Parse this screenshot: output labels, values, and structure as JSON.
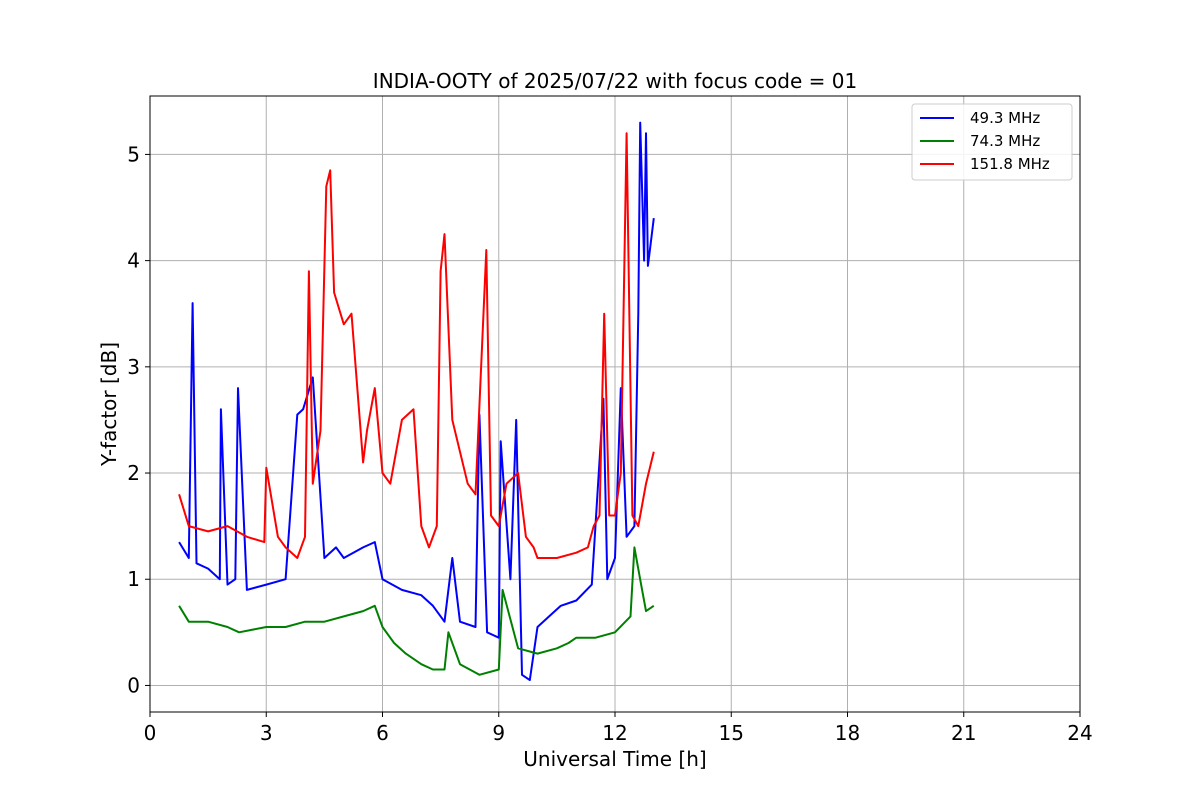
{
  "chart_data": {
    "type": "line",
    "title": "INDIA-OOTY of 2025/07/22 with focus code = 01",
    "xlabel": "Universal Time [h]",
    "ylabel": "Y-factor [dB]",
    "xlim": [
      0,
      24
    ],
    "ylim": [
      -0.25,
      5.55
    ],
    "xticks": [
      0,
      3,
      6,
      9,
      12,
      15,
      18,
      21,
      24
    ],
    "yticks": [
      0,
      1,
      2,
      3,
      4,
      5
    ],
    "grid": true,
    "legend_position": "top-right",
    "series": [
      {
        "name": "  49.3 MHz",
        "color": "#0000ff",
        "x": [
          0.75,
          1.0,
          1.1,
          1.2,
          1.5,
          1.8,
          1.83,
          2.0,
          2.2,
          2.27,
          2.5,
          3.0,
          3.5,
          3.8,
          3.95,
          4.2,
          4.5,
          4.8,
          5.0,
          5.5,
          5.8,
          6.0,
          6.5,
          7.0,
          7.3,
          7.6,
          7.8,
          8.0,
          8.4,
          8.5,
          8.7,
          9.0,
          9.05,
          9.3,
          9.45,
          9.6,
          9.8,
          10.0,
          10.3,
          10.6,
          11.0,
          11.4,
          11.7,
          11.8,
          12.0,
          12.15,
          12.3,
          12.5,
          12.6,
          12.65,
          12.75,
          12.8,
          12.85,
          12.9,
          13.0
        ],
        "y": [
          1.35,
          1.2,
          3.6,
          1.15,
          1.1,
          1.0,
          2.6,
          0.95,
          1.0,
          2.8,
          0.9,
          0.95,
          1.0,
          2.55,
          2.6,
          2.9,
          1.2,
          1.3,
          1.2,
          1.3,
          1.35,
          1.0,
          0.9,
          0.85,
          0.75,
          0.6,
          1.2,
          0.6,
          0.55,
          2.55,
          0.5,
          0.45,
          2.3,
          1.0,
          2.5,
          0.1,
          0.05,
          0.55,
          0.65,
          0.75,
          0.8,
          0.95,
          2.7,
          1.0,
          1.2,
          2.8,
          1.4,
          1.5,
          3.5,
          5.3,
          4.0,
          5.2,
          3.95,
          4.1,
          4.4
        ]
      },
      {
        "name": "  74.3 MHz",
        "color": "#008000",
        "x": [
          0.75,
          1.0,
          1.5,
          2.0,
          2.3,
          3.0,
          3.5,
          4.0,
          4.5,
          5.0,
          5.5,
          5.8,
          6.0,
          6.3,
          6.6,
          7.0,
          7.3,
          7.6,
          7.7,
          8.0,
          8.5,
          9.0,
          9.1,
          9.5,
          10.0,
          10.5,
          10.8,
          11.0,
          11.5,
          12.0,
          12.4,
          12.5,
          12.7,
          12.8,
          13.0
        ],
        "y": [
          0.75,
          0.6,
          0.6,
          0.55,
          0.5,
          0.55,
          0.55,
          0.6,
          0.6,
          0.65,
          0.7,
          0.75,
          0.55,
          0.4,
          0.3,
          0.2,
          0.15,
          0.15,
          0.5,
          0.2,
          0.1,
          0.15,
          0.9,
          0.35,
          0.3,
          0.35,
          0.4,
          0.45,
          0.45,
          0.5,
          0.65,
          1.3,
          0.9,
          0.7,
          0.75
        ]
      },
      {
        "name": "151.8 MHz",
        "color": "#ff0000",
        "x": [
          0.75,
          1.0,
          1.5,
          2.0,
          2.5,
          2.95,
          3.0,
          3.3,
          3.5,
          3.8,
          4.0,
          4.1,
          4.2,
          4.4,
          4.55,
          4.65,
          4.75,
          5.0,
          5.2,
          5.5,
          5.6,
          5.8,
          6.0,
          6.2,
          6.5,
          6.8,
          7.0,
          7.2,
          7.4,
          7.5,
          7.6,
          7.8,
          8.0,
          8.2,
          8.4,
          8.68,
          8.8,
          9.0,
          9.2,
          9.5,
          9.7,
          9.9,
          10.0,
          10.5,
          11.0,
          11.3,
          11.45,
          11.6,
          11.72,
          11.85,
          12.0,
          12.15,
          12.3,
          12.45,
          12.6,
          12.8,
          13.0
        ],
        "y": [
          1.8,
          1.5,
          1.45,
          1.5,
          1.4,
          1.35,
          2.05,
          1.4,
          1.3,
          1.2,
          1.4,
          3.9,
          1.9,
          2.4,
          4.7,
          4.85,
          3.7,
          3.4,
          3.5,
          2.1,
          2.4,
          2.8,
          2.0,
          1.9,
          2.5,
          2.6,
          1.5,
          1.3,
          1.5,
          3.9,
          4.25,
          2.5,
          2.2,
          1.9,
          1.8,
          4.1,
          1.6,
          1.5,
          1.9,
          2.0,
          1.4,
          1.3,
          1.2,
          1.2,
          1.25,
          1.3,
          1.5,
          1.6,
          3.5,
          1.6,
          1.6,
          2.0,
          5.2,
          1.6,
          1.5,
          1.9,
          2.2
        ]
      }
    ]
  }
}
